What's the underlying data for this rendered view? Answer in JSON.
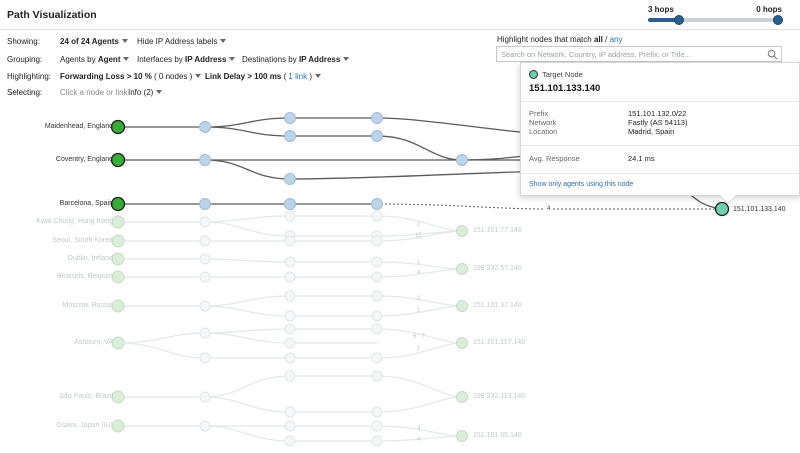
{
  "header": {
    "title": "Path Visualization"
  },
  "hops": {
    "left_label": "3 hops",
    "right_label": "0 hops",
    "position": 0.24
  },
  "showing": {
    "label": "Showing:",
    "agents": "24 of 24 Agents",
    "ip_labels": "Hide IP Address labels"
  },
  "grouping": {
    "label": "Grouping:",
    "agents_prefix": "Agents by",
    "agents_value": "Agent",
    "interfaces_prefix": "Interfaces by",
    "interfaces_value": "IP Address",
    "destinations_prefix": "Destinations by",
    "destinations_value": "IP Address"
  },
  "highlighting": {
    "label": "Highlighting:",
    "loss_text": "Forwarding Loss > 10 %",
    "loss_count": "( 0 nodes )",
    "delay_text": "Link Delay > 100 ms",
    "delay_count_open": "(",
    "delay_count_link": "1 link",
    "delay_count_close": ")"
  },
  "selecting": {
    "label": "Selecting:",
    "hint": "Click a node or link",
    "info": "Info (2)"
  },
  "highlight_match": {
    "prefix": "Highlight nodes that match",
    "all": "all",
    "slash": "/",
    "any": "any"
  },
  "search": {
    "placeholder": "Search on Network, Country, IP address, Prefix, or Title..."
  },
  "agents": [
    "Maidenhead, England",
    "Coventry, England",
    "Barcelona, Spain",
    "Kwai Chung, Hong Kong",
    "Seoul, South Korea",
    "Dublin, Ireland",
    "Brussels, Belgium",
    "Moscow, Russia",
    "Ashburn, VA",
    "São Paulo, Brazil",
    "Osaka, Japan (IU)"
  ],
  "destinations": [
    "151.101.77.140",
    "199.232.57.140",
    "151.101.37.140",
    "151.101.117.140",
    "199.232.113.140",
    "151.101.65.140"
  ],
  "target_node_label": "151.101.133.140",
  "edge_labels": {
    "barcelona": "4",
    "kwai_a": "2",
    "kwai_b": "15",
    "dublin_a": "1",
    "dublin_b": "4",
    "moscow_a": "2",
    "moscow_b": "1",
    "ashburn_a": "6 : 7",
    "ashburn_b": "1",
    "osaka_a": "4",
    "osaka_b": "4"
  },
  "popup": {
    "title": "Target Node",
    "ip": "151.101.133.140",
    "prefix_label": "Prefix",
    "prefix_value": "151.101.132.0/22",
    "network_label": "Network",
    "network_value": "Fastly (AS 54113)",
    "location_label": "Location",
    "location_value": "Madrid, Spain",
    "response_label": "Avg. Response",
    "response_value": "24.1 ms",
    "link": "Show only agents using this node"
  },
  "colors": {
    "agent_green": "#3aab3a",
    "hop_blue": "#bcd4ea",
    "target_teal": "#6fcfb0",
    "faded_green": "#dbeed9",
    "faded_line": "#e4e8eb",
    "accent": "#2c5f8e"
  }
}
